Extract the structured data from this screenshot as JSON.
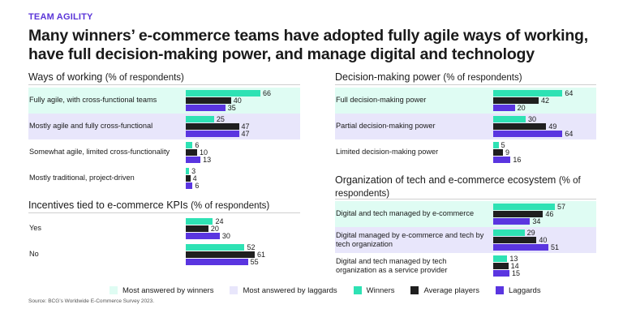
{
  "eyebrow": "TEAM AGILITY",
  "title": "Many winners’ e-commerce teams have adopted fully agile ways of working, have full decision-making power, and manage digital and technology",
  "colors": {
    "winners": "#2ee2b4",
    "average": "#1f1f1f",
    "laggards": "#5a35e0",
    "band_winners": "#dffcf3",
    "band_laggards": "#e8e6fb",
    "accent": "#5a35d8"
  },
  "legend": {
    "band_winners": "Most answered by winners",
    "band_laggards": "Most answered by laggards",
    "winners": "Winners",
    "average": "Average players",
    "laggards": "Laggards"
  },
  "source": "Source: BCG’s Worldwide E-Commerce Survey 2023.",
  "chart_data": [
    {
      "type": "bar",
      "title": "Ways of working",
      "unit_note": "(% of respondents)",
      "series_names": [
        "Winners",
        "Average players",
        "Laggards"
      ],
      "max_value": 66,
      "categories": [
        {
          "label": "Fully agile, with cross-functional teams",
          "values": [
            66,
            40,
            35
          ],
          "highlight": "winners"
        },
        {
          "label": "Mostly agile and fully cross-functional",
          "values": [
            25,
            47,
            47
          ],
          "highlight": "laggards"
        },
        {
          "label": "Somewhat agile, limited cross-functionality",
          "values": [
            6,
            10,
            13
          ],
          "highlight": "none"
        },
        {
          "label": "Mostly traditional, project-driven",
          "values": [
            3,
            4,
            6
          ],
          "highlight": "none"
        }
      ]
    },
    {
      "type": "bar",
      "title": "Incentives tied to e-commerce KPIs",
      "unit_note": "(% of respondents)",
      "series_names": [
        "Winners",
        "Average players",
        "Laggards"
      ],
      "max_value": 66,
      "categories": [
        {
          "label": "Yes",
          "values": [
            24,
            20,
            30
          ],
          "highlight": "none"
        },
        {
          "label": "No",
          "values": [
            52,
            61,
            55
          ],
          "highlight": "none"
        }
      ]
    },
    {
      "type": "bar",
      "title": "Decision-making power",
      "unit_note": "(% of respondents)",
      "series_names": [
        "Winners",
        "Average players",
        "Laggards"
      ],
      "max_value": 66,
      "categories": [
        {
          "label": "Full decision-making power",
          "values": [
            64,
            42,
            20
          ],
          "highlight": "winners"
        },
        {
          "label": "Partial decision-making power",
          "values": [
            30,
            49,
            64
          ],
          "highlight": "laggards"
        },
        {
          "label": "Limited decision-making power",
          "values": [
            5,
            9,
            16
          ],
          "highlight": "none"
        }
      ]
    },
    {
      "type": "bar",
      "title": "Organization of tech and e-commerce ecosystem",
      "unit_note": "(% of respondents)",
      "series_names": [
        "Winners",
        "Average players",
        "Laggards"
      ],
      "max_value": 66,
      "categories": [
        {
          "label": "Digital and tech managed by e-commerce",
          "values": [
            57,
            46,
            34
          ],
          "highlight": "winners"
        },
        {
          "label": "Digital managed by e-commerce and tech by tech organization",
          "values": [
            29,
            40,
            51
          ],
          "highlight": "laggards"
        },
        {
          "label": "Digital and tech managed by tech organization as a service provider",
          "values": [
            13,
            14,
            15
          ],
          "highlight": "none"
        }
      ]
    }
  ]
}
